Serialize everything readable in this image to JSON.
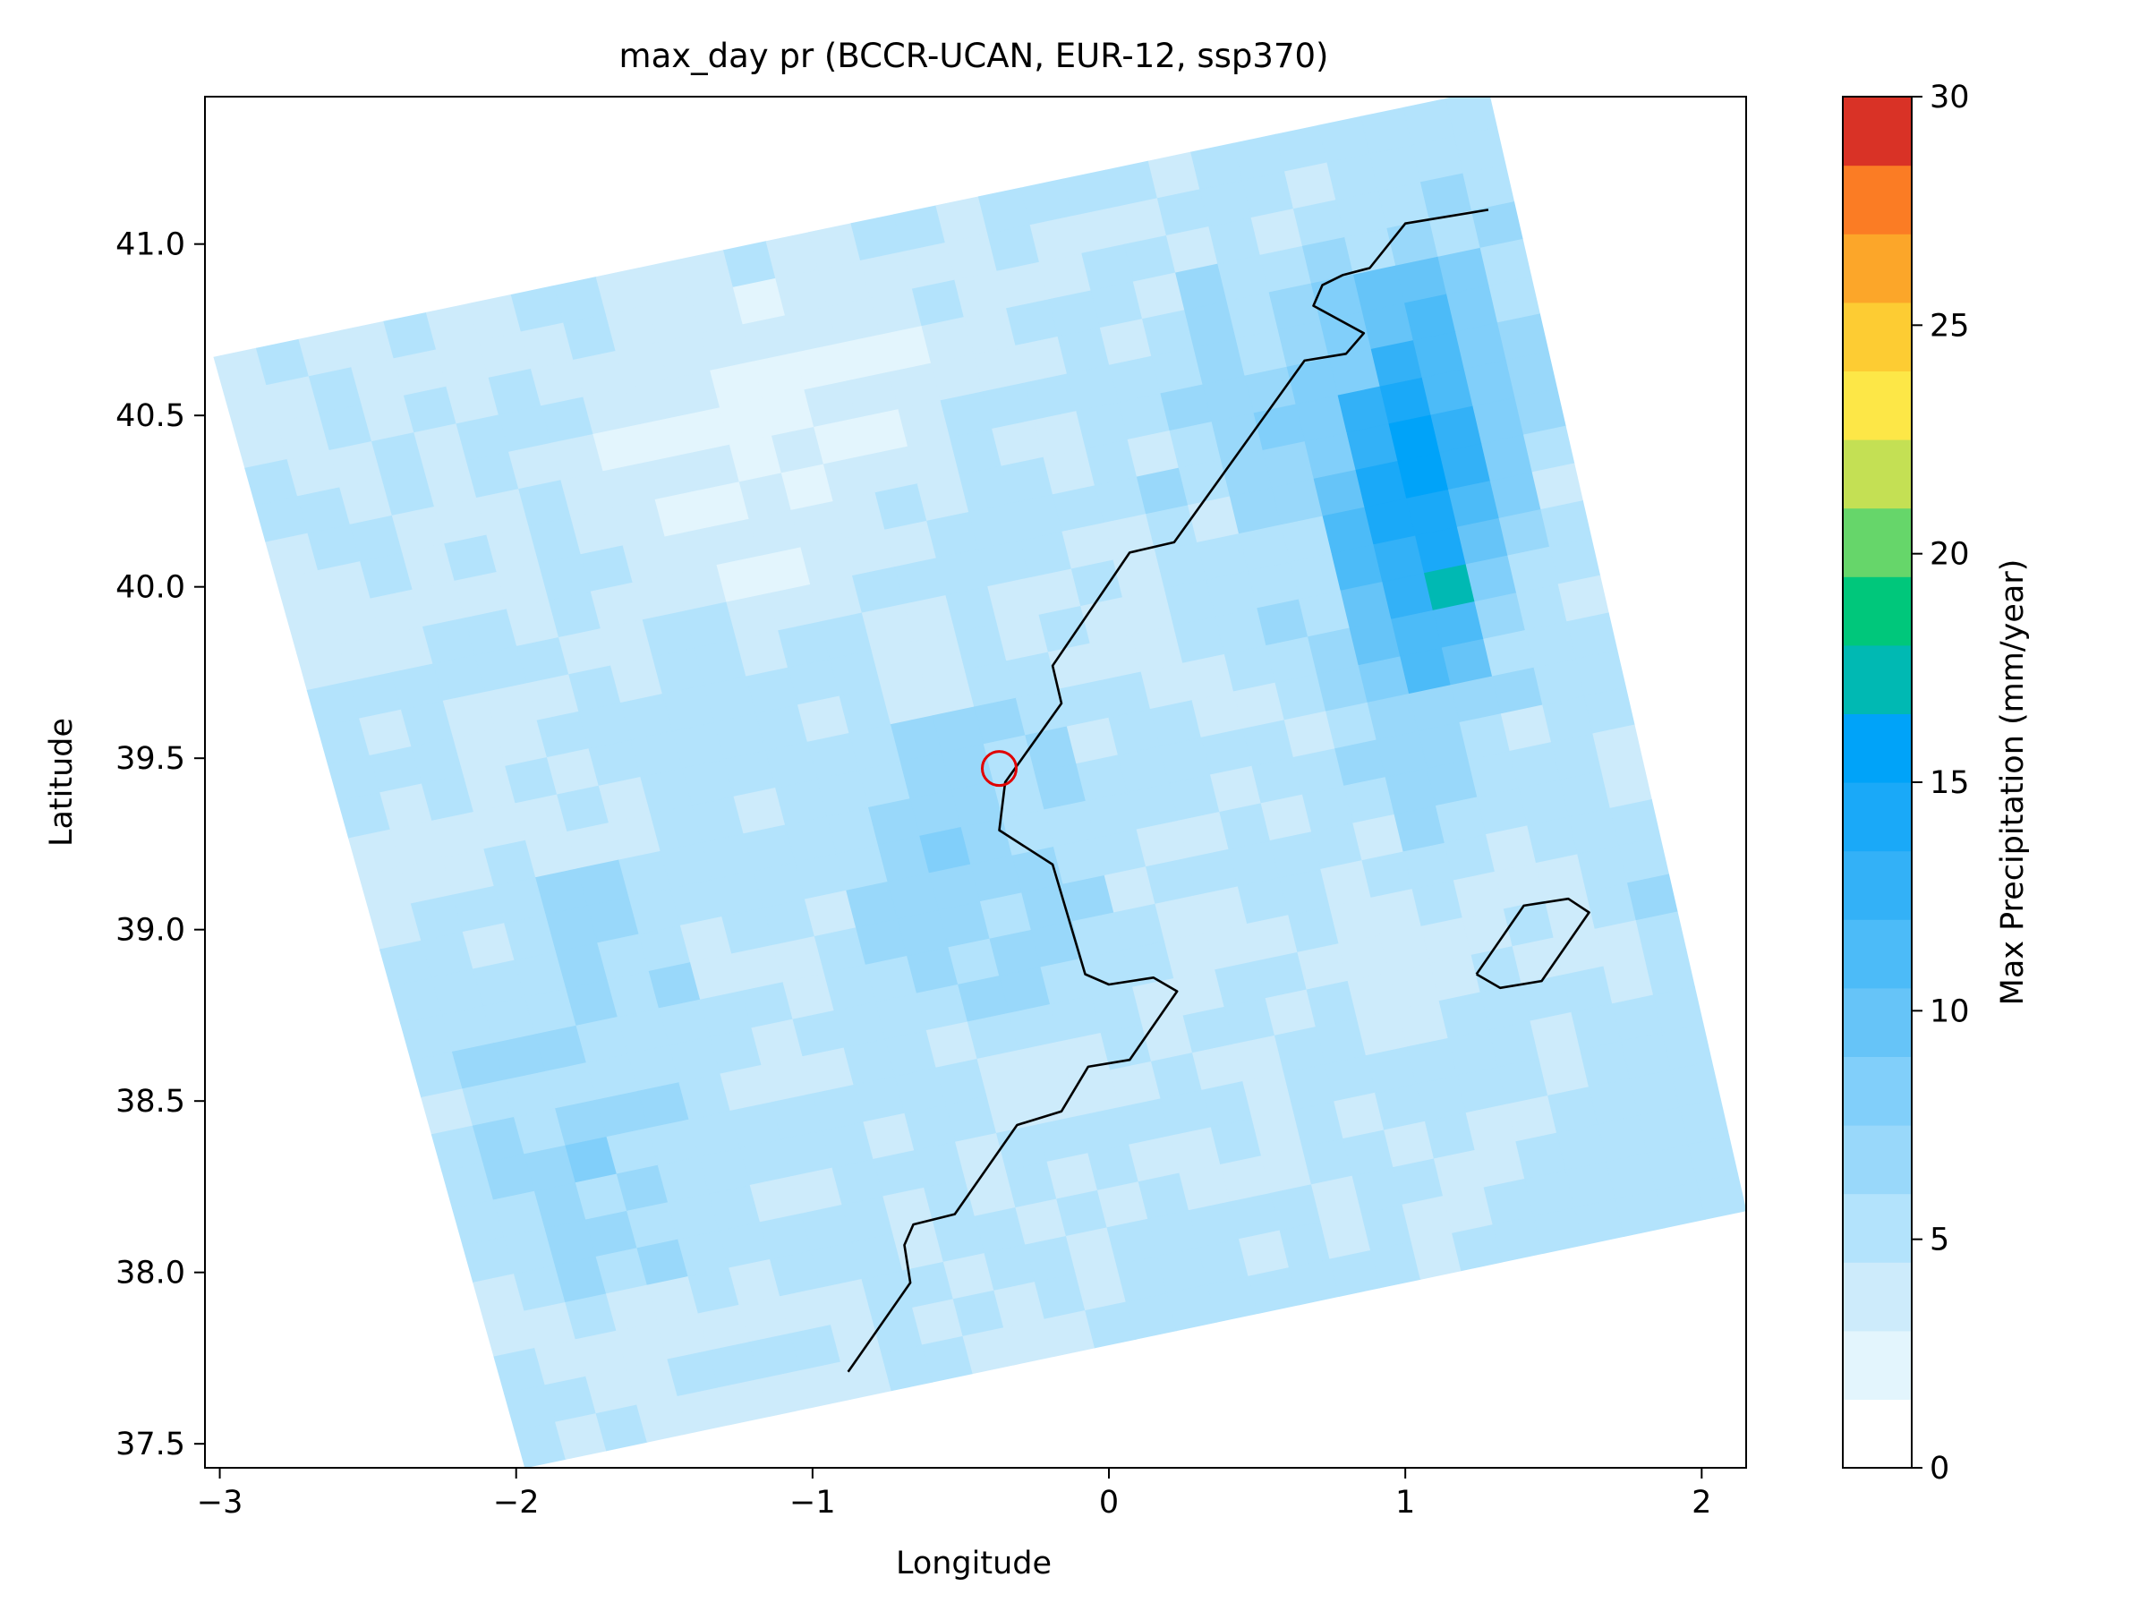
{
  "chart_data": {
    "type": "heatmap",
    "title": "max_day pr (BCCR-UCAN, EUR-12, ssp370)",
    "xlabel": "Longitude",
    "ylabel": "Latitude",
    "xlim": [
      -3.05,
      2.15
    ],
    "ylim": [
      37.43,
      41.43
    ],
    "xticks": [
      -3,
      -2,
      -1,
      0,
      1,
      2
    ],
    "xtick_labels": [
      "−3",
      "−2",
      "−1",
      "0",
      "1",
      "2"
    ],
    "yticks": [
      37.5,
      38.0,
      38.5,
      39.0,
      39.5,
      40.0,
      40.5,
      41.0
    ],
    "ytick_labels": [
      "37.5",
      "38.0",
      "38.5",
      "39.0",
      "39.5",
      "40.0",
      "40.5",
      "41.0"
    ],
    "grid": false,
    "colorbar": {
      "label": "Max Precipitation (mm/year)",
      "min": 0,
      "max": 30,
      "ticks": [
        0,
        5,
        10,
        15,
        20,
        25,
        30
      ],
      "tick_labels": [
        "0",
        "5",
        "10",
        "15",
        "20",
        "25",
        "30"
      ],
      "bins": [
        {
          "from": 0.0,
          "to": 1.5,
          "color": "#ffffff"
        },
        {
          "from": 1.5,
          "to": 3.0,
          "color": "#e3f5fd"
        },
        {
          "from": 3.0,
          "to": 4.5,
          "color": "#cdebfb"
        },
        {
          "from": 4.5,
          "to": 6.0,
          "color": "#b3e3fc"
        },
        {
          "from": 6.0,
          "to": 7.5,
          "color": "#99d8fa"
        },
        {
          "from": 7.5,
          "to": 9.0,
          "color": "#81cffa"
        },
        {
          "from": 9.0,
          "to": 10.5,
          "color": "#66c4f8"
        },
        {
          "from": 10.5,
          "to": 12.0,
          "color": "#4cbbf8"
        },
        {
          "from": 12.0,
          "to": 13.5,
          "color": "#33b1f7"
        },
        {
          "from": 13.5,
          "to": 15.0,
          "color": "#1aa9f8"
        },
        {
          "from": 15.0,
          "to": 16.5,
          "color": "#00a3f9"
        },
        {
          "from": 16.5,
          "to": 18.0,
          "color": "#00b9b3"
        },
        {
          "from": 18.0,
          "to": 19.5,
          "color": "#00c77b"
        },
        {
          "from": 19.5,
          "to": 21.0,
          "color": "#66d66a"
        },
        {
          "from": 21.0,
          "to": 22.5,
          "color": "#c4e054"
        },
        {
          "from": 22.5,
          "to": 24.0,
          "color": "#fde747"
        },
        {
          "from": 24.0,
          "to": 25.5,
          "color": "#fdcc33"
        },
        {
          "from": 25.5,
          "to": 27.0,
          "color": "#fca629"
        },
        {
          "from": 27.0,
          "to": 28.5,
          "color": "#fb7c24"
        },
        {
          "from": 28.5,
          "to": 30.0,
          "color": "#d93226"
        }
      ]
    },
    "grid_domain": {
      "corners_lonlat": {
        "top_left": [
          -3.02,
          40.67
        ],
        "top_right": [
          1.28,
          41.45
        ],
        "bottom_left": [
          -1.97,
          37.43
        ],
        "bottom_right": [
          2.15,
          38.18
        ]
      },
      "columns": 30,
      "rows": 30,
      "values": "synthesized from visible regions"
    },
    "highlight_regions": [
      {
        "name": "core",
        "lon": 1.05,
        "lat": 40.2,
        "sx": 0.25,
        "sy": 0.55,
        "amp": 10
      },
      {
        "name": "hotspot",
        "lon": 1.15,
        "lat": 39.97,
        "sx": 0.06,
        "sy": 0.06,
        "amp": 6
      },
      {
        "name": "coast-north",
        "lon": 0.85,
        "lat": 40.6,
        "sx": 0.5,
        "sy": 0.4,
        "amp": 2.5
      },
      {
        "name": "central",
        "lon": -0.5,
        "lat": 39.2,
        "sx": 0.4,
        "sy": 0.35,
        "amp": 2.5
      },
      {
        "name": "west-south",
        "lon": -1.8,
        "lat": 38.3,
        "sx": 0.35,
        "sy": 0.4,
        "amp": 2.5
      },
      {
        "name": "west-mid",
        "lon": -1.75,
        "lat": 39.0,
        "sx": 0.25,
        "sy": 0.2,
        "amp": 2.5
      },
      {
        "name": "dry-northwest",
        "lon": -1.2,
        "lat": 40.5,
        "sx": 0.6,
        "sy": 0.4,
        "amp": -2
      },
      {
        "name": "dry-mallorca-sea",
        "lon": 1.1,
        "lat": 38.95,
        "sx": 0.35,
        "sy": 0.15,
        "amp": -1.5
      }
    ],
    "coastline": [
      [
        1.28,
        41.1
      ],
      [
        1.0,
        41.06
      ],
      [
        0.88,
        40.93
      ],
      [
        0.79,
        40.91
      ],
      [
        0.72,
        40.88
      ],
      [
        0.69,
        40.82
      ],
      [
        0.86,
        40.74
      ],
      [
        0.8,
        40.68
      ],
      [
        0.66,
        40.66
      ],
      [
        0.22,
        40.13
      ],
      [
        0.07,
        40.1
      ],
      [
        -0.19,
        39.77
      ],
      [
        -0.16,
        39.66
      ],
      [
        -0.35,
        39.43
      ],
      [
        -0.37,
        39.29
      ],
      [
        -0.19,
        39.19
      ],
      [
        -0.08,
        38.87
      ],
      [
        0.0,
        38.84
      ],
      [
        0.15,
        38.86
      ],
      [
        0.23,
        38.82
      ],
      [
        0.07,
        38.62
      ],
      [
        -0.07,
        38.6
      ],
      [
        -0.16,
        38.47
      ],
      [
        -0.31,
        38.43
      ],
      [
        -0.52,
        38.17
      ],
      [
        -0.66,
        38.14
      ],
      [
        -0.69,
        38.08
      ],
      [
        -0.67,
        37.97
      ],
      [
        -0.88,
        37.71
      ]
    ],
    "island_outline": [
      [
        1.24,
        38.87
      ],
      [
        1.4,
        39.07
      ],
      [
        1.55,
        39.09
      ],
      [
        1.62,
        39.05
      ],
      [
        1.46,
        38.85
      ],
      [
        1.32,
        38.83
      ],
      [
        1.24,
        38.87
      ]
    ],
    "marker": {
      "lon": -0.37,
      "lat": 39.47,
      "color": "#e00000",
      "shape": "circle"
    }
  }
}
